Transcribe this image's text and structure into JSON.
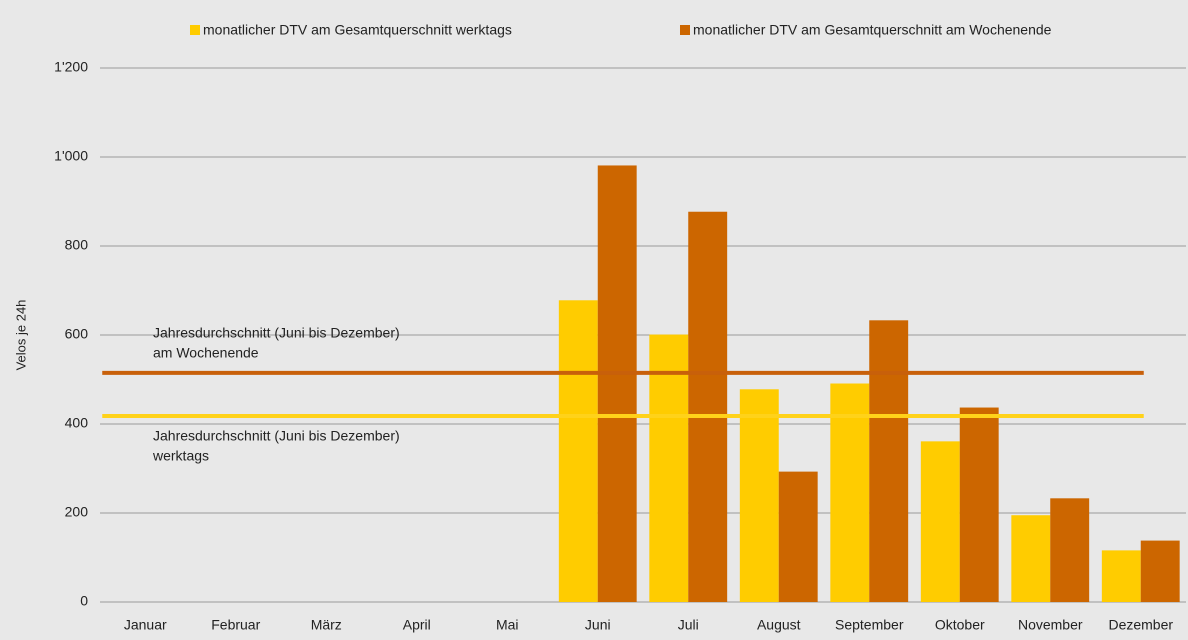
{
  "chart_data": {
    "type": "bar",
    "y_label": "Velos je 24h",
    "categories": [
      "Januar",
      "Februar",
      "März",
      "April",
      "Mai",
      "Juni",
      "Juli",
      "August",
      "September",
      "Oktober",
      "November",
      "Dezember"
    ],
    "series": [
      {
        "name": "monatlicher DTV am Gesamtquerschnitt werktags",
        "color": "#ffcc00",
        "values": [
          null,
          null,
          null,
          null,
          null,
          678,
          601,
          478,
          491,
          361,
          195,
          116
        ]
      },
      {
        "name": "monatlicher DTV am Gesamtquerschnitt am Wochenende",
        "color": "#cc6600",
        "values": [
          null,
          null,
          null,
          null,
          null,
          981,
          877,
          293,
          633,
          437,
          233,
          138
        ]
      }
    ],
    "reference_lines": [
      {
        "label": [
          "Jahresdurchschnitt (Juni bis Dezember)",
          "am Wochenende"
        ],
        "value": 515,
        "color": "#c8600a",
        "label_side": "above"
      },
      {
        "label": [
          "Jahresdurchschnitt (Juni bis Dezember)",
          "werktags"
        ],
        "value": 418,
        "color": "#ffd21a",
        "label_side": "below"
      }
    ],
    "ylim": [
      0,
      1200
    ],
    "yticks": [
      0,
      200,
      400,
      600,
      800,
      {
        "value": 1000,
        "label": "1'000"
      },
      {
        "value": 1200,
        "label": "1'200"
      }
    ],
    "grid": true,
    "legend": "top"
  }
}
